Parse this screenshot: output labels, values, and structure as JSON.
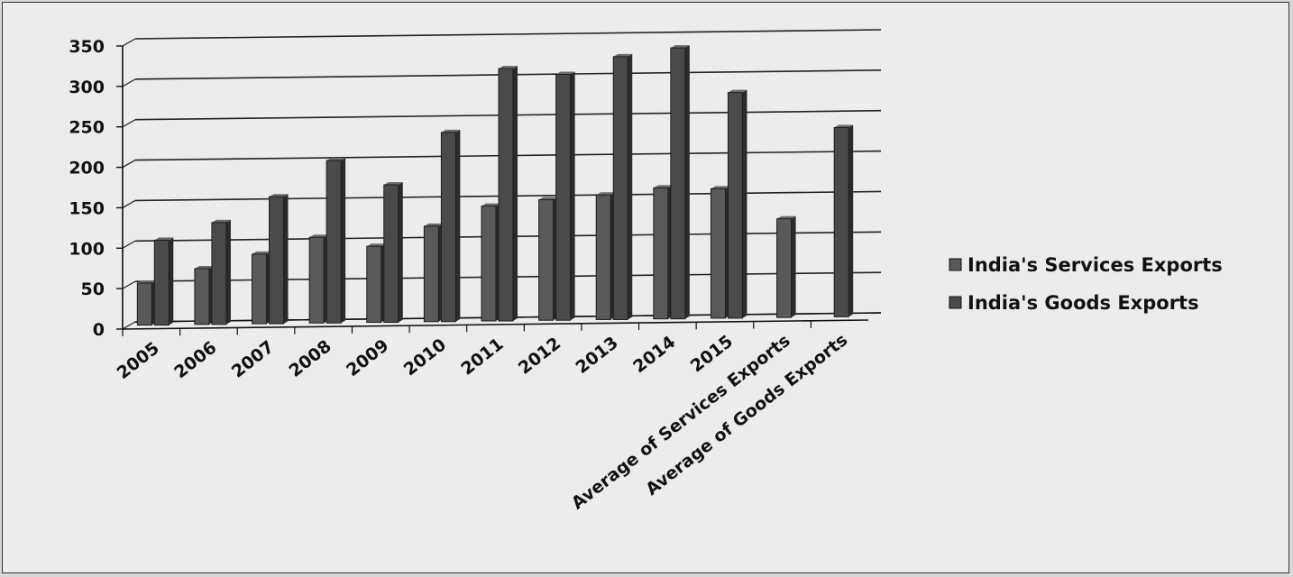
{
  "chart_data": {
    "type": "bar",
    "title": "",
    "xlabel": "",
    "ylabel": "",
    "ylim": [
      0,
      350
    ],
    "yticks": [
      0,
      50,
      100,
      150,
      200,
      250,
      300,
      350
    ],
    "grid": true,
    "legend_position": "right",
    "categories": [
      "2005",
      "2006",
      "2007",
      "2008",
      "2009",
      "2010",
      "2011",
      "2012",
      "2013",
      "2014",
      "2015",
      "Average of Services Exports",
      "Average of Goods Exports"
    ],
    "series": [
      {
        "name": "India's Services Exports",
        "color": "#595959",
        "values": [
          52,
          69,
          86,
          106,
          94,
          118,
          142,
          149,
          154,
          162,
          160,
          122,
          null
        ]
      },
      {
        "name": "India's Goods Exports",
        "color": "#4a4a4a",
        "values": [
          105,
          126,
          157,
          201,
          170,
          234,
          312,
          304,
          325,
          335,
          279,
          null,
          234
        ]
      }
    ]
  }
}
